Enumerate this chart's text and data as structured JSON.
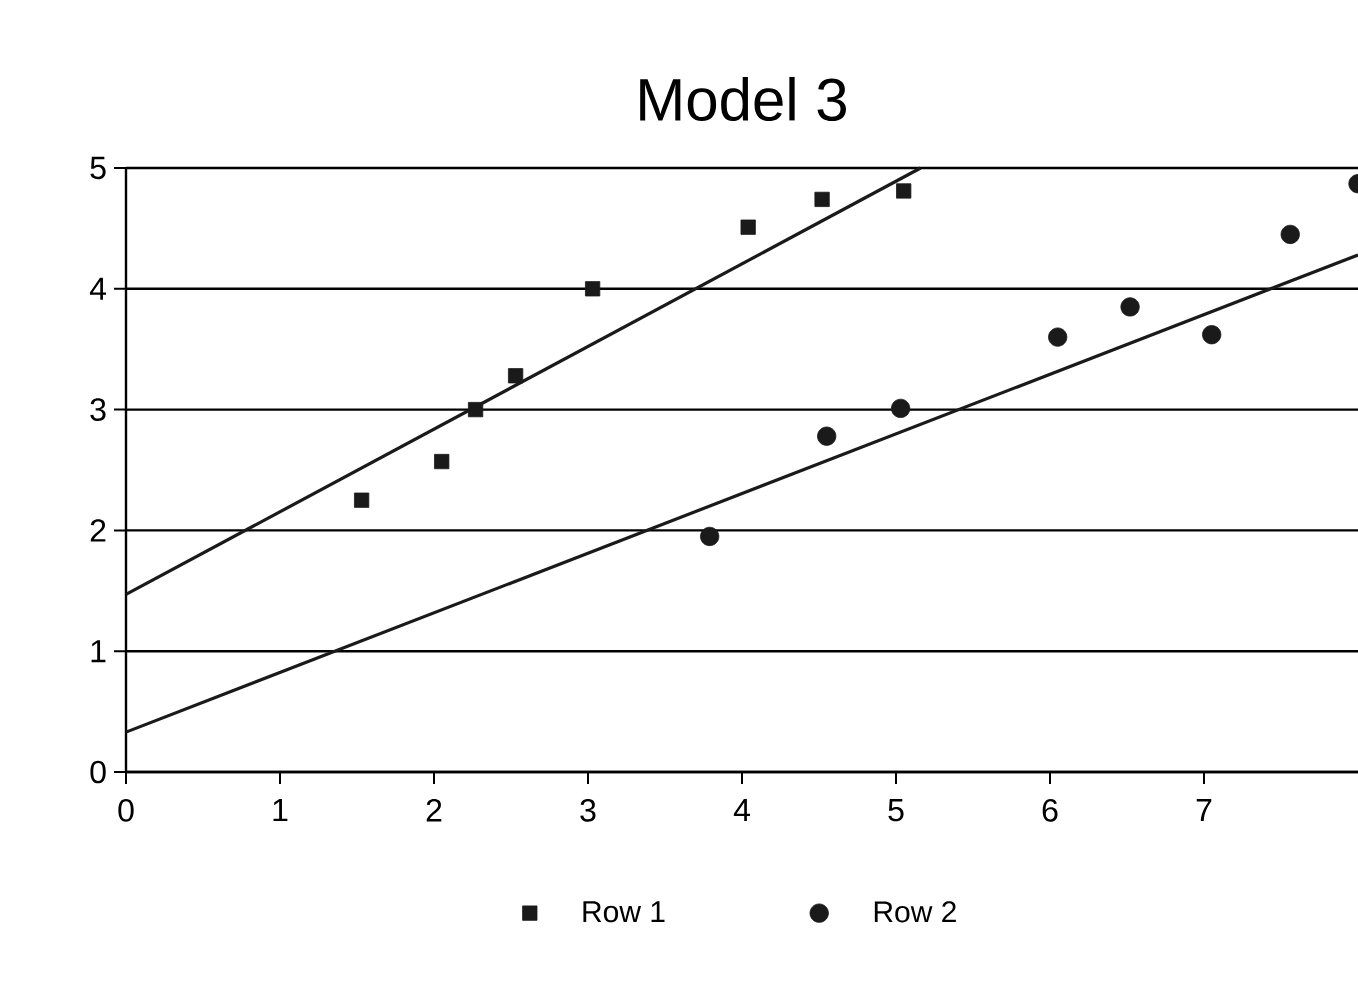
{
  "chart_data": {
    "type": "scatter",
    "title": "Model 3",
    "xlim": [
      0,
      8
    ],
    "ylim": [
      0,
      5
    ],
    "xticks": [
      0,
      1,
      2,
      3,
      4,
      5,
      6,
      7
    ],
    "yticks": [
      0,
      1,
      2,
      3,
      4,
      5
    ],
    "grid": "y",
    "legend": "bottom",
    "series": [
      {
        "name": "Row 1",
        "marker": "square",
        "color": "#1a1a1a",
        "x": [
          1.53,
          2.05,
          2.27,
          2.53,
          3.03,
          4.04,
          4.52,
          5.05
        ],
        "values": [
          2.25,
          2.57,
          3.0,
          3.28,
          4.0,
          4.51,
          4.74,
          4.81
        ]
      },
      {
        "name": "Row 2",
        "marker": "circle",
        "color": "#1a1a1a",
        "x": [
          3.79,
          4.55,
          5.03,
          6.05,
          6.52,
          7.05,
          7.56,
          8.0
        ],
        "values": [
          1.95,
          2.78,
          3.01,
          3.6,
          3.85,
          3.62,
          4.45,
          4.87
        ]
      },
      {
        "type": "line",
        "marker": "none",
        "color": "#1a1a1a",
        "x": [
          0,
          5.16
        ],
        "values": [
          1.47,
          5.0
        ]
      },
      {
        "type": "line",
        "marker": "none",
        "color": "#1a1a1a",
        "x": [
          0,
          8
        ],
        "values": [
          0.33,
          4.28
        ]
      }
    ]
  }
}
